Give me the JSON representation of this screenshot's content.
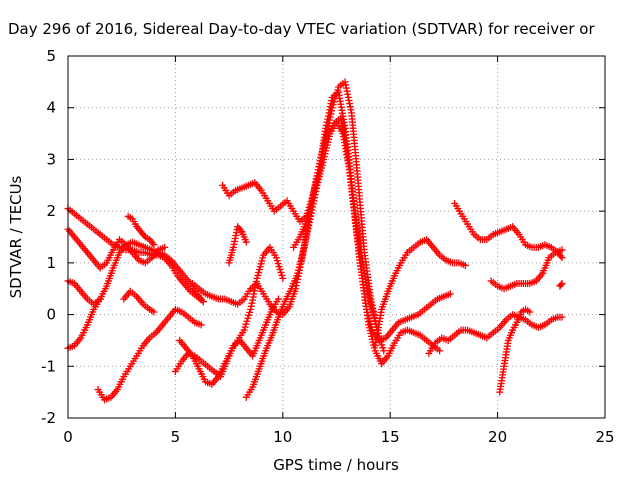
{
  "chart_data": {
    "type": "scatter",
    "title": "Day 296 of 2016, Sidereal Day-to-day VTEC variation (SDTVAR) for receiver or",
    "xlabel": "GPS time / hours",
    "ylabel": "SDTVAR / TECUs",
    "xlim": [
      0,
      25
    ],
    "ylim": [
      -2,
      5
    ],
    "xticks": [
      "0",
      "5",
      "10",
      "15",
      "20",
      "25"
    ],
    "yticks": [
      "-2",
      "-1",
      "0",
      "1",
      "2",
      "3",
      "4",
      "5"
    ],
    "grid": true,
    "marker": "+",
    "marker_color": "#ff0000",
    "series": [
      {
        "x": [
          0.0,
          0.3,
          0.6,
          0.9,
          1.2,
          1.5,
          1.8,
          2.1,
          2.4,
          2.7,
          3.0,
          3.3,
          3.6,
          3.9,
          4.2,
          4.5,
          4.8,
          5.1,
          5.4,
          5.7,
          6.0,
          6.3
        ],
        "y": [
          2.05,
          1.95,
          1.85,
          1.75,
          1.65,
          1.55,
          1.45,
          1.35,
          1.3,
          1.25,
          1.25,
          1.2,
          1.2,
          1.15,
          1.15,
          1.1,
          0.95,
          0.75,
          0.6,
          0.45,
          0.35,
          0.25
        ]
      },
      {
        "x": [
          0.0,
          0.3,
          0.6,
          0.9,
          1.2,
          1.5,
          1.8,
          2.1,
          2.4,
          2.7,
          3.0,
          3.3,
          3.6,
          3.9,
          4.2,
          4.5
        ],
        "y": [
          1.65,
          1.5,
          1.35,
          1.2,
          1.05,
          0.9,
          1.0,
          1.25,
          1.45,
          1.35,
          1.2,
          1.05,
          1.0,
          1.1,
          1.25,
          1.3
        ]
      },
      {
        "x": [
          0.0,
          0.3,
          0.6,
          0.9,
          1.2,
          1.5,
          1.8,
          2.1,
          2.4,
          2.7,
          3.0,
          3.3,
          3.6,
          3.9,
          4.2,
          4.5,
          4.8,
          5.1,
          5.4,
          5.7,
          6.0,
          6.3
        ],
        "y": [
          -0.65,
          -0.6,
          -0.45,
          -0.2,
          0.1,
          0.3,
          0.55,
          0.9,
          1.2,
          1.35,
          1.4,
          1.35,
          1.3,
          1.25,
          1.2,
          1.15,
          1.05,
          0.9,
          0.75,
          0.6,
          0.4,
          0.25
        ]
      },
      {
        "x": [
          0.0,
          0.3,
          0.6,
          0.9,
          1.2,
          1.5
        ],
        "y": [
          0.65,
          0.6,
          0.45,
          0.3,
          0.2,
          0.3
        ]
      },
      {
        "x": [
          1.4,
          1.7,
          2.0,
          2.3,
          2.6,
          2.9,
          3.2,
          3.5,
          3.8,
          4.1,
          4.4,
          4.7,
          5.0,
          5.3,
          5.6,
          5.9,
          6.2
        ],
        "y": [
          -1.45,
          -1.65,
          -1.6,
          -1.45,
          -1.2,
          -1.0,
          -0.8,
          -0.6,
          -0.45,
          -0.35,
          -0.2,
          -0.05,
          0.1,
          0.05,
          -0.05,
          -0.15,
          -0.2
        ]
      },
      {
        "x": [
          2.6,
          2.9,
          3.2,
          3.5,
          3.8,
          4.0
        ],
        "y": [
          0.3,
          0.45,
          0.35,
          0.2,
          0.1,
          0.05
        ]
      },
      {
        "x": [
          2.8,
          3.0,
          3.2,
          3.4,
          3.6,
          3.8,
          4.0
        ],
        "y": [
          1.9,
          1.85,
          1.7,
          1.6,
          1.5,
          1.45,
          1.35
        ]
      },
      {
        "x": [
          5.8,
          6.1,
          6.4,
          6.7,
          7.0,
          7.3,
          7.6,
          7.9,
          8.2,
          8.5,
          8.8,
          9.1,
          9.4,
          9.7,
          10.0,
          10.3,
          10.6,
          10.9,
          11.2,
          11.5,
          11.8,
          12.1,
          12.4,
          12.7,
          13.0,
          13.3,
          13.6,
          13.9,
          14.2,
          14.5,
          14.8,
          15.1,
          15.4,
          15.7,
          16.0,
          16.3,
          16.6,
          16.9,
          17.2,
          17.5,
          17.8
        ],
        "y": [
          0.6,
          0.5,
          0.4,
          0.35,
          0.3,
          0.3,
          0.25,
          0.2,
          0.3,
          0.5,
          0.6,
          0.4,
          0.2,
          0.05,
          0.0,
          0.15,
          0.5,
          1.1,
          1.8,
          2.5,
          3.1,
          3.5,
          3.7,
          3.8,
          3.3,
          2.2,
          1.0,
          0.1,
          -0.35,
          -0.5,
          -0.45,
          -0.3,
          -0.15,
          -0.1,
          -0.05,
          0.0,
          0.1,
          0.2,
          0.3,
          0.35,
          0.4
        ]
      },
      {
        "x": [
          8.3,
          8.6,
          8.9,
          9.2,
          9.5,
          9.8,
          10.1,
          10.4,
          10.7,
          11.0,
          11.3,
          11.6,
          11.9,
          12.2,
          12.5,
          12.8,
          13.1,
          13.4,
          13.7,
          14.0,
          14.3,
          14.6,
          14.9,
          15.2,
          15.5,
          15.8,
          16.1,
          16.4,
          16.7,
          17.0,
          17.3
        ],
        "y": [
          -1.6,
          -1.4,
          -1.05,
          -0.7,
          -0.4,
          -0.05,
          0.25,
          0.5,
          0.8,
          1.3,
          1.9,
          2.5,
          3.0,
          3.5,
          3.7,
          3.5,
          2.8,
          1.7,
          0.7,
          -0.2,
          -0.7,
          -0.95,
          -0.8,
          -0.55,
          -0.35,
          -0.3,
          -0.35,
          -0.4,
          -0.5,
          -0.6,
          -0.7
        ]
      },
      {
        "x": [
          7.2,
          7.5,
          7.8,
          8.1,
          8.4,
          8.7,
          9.0,
          9.3,
          9.6,
          9.9,
          10.2,
          10.5,
          10.8,
          11.1,
          11.4,
          11.7,
          12.0,
          12.3,
          12.6,
          12.9,
          13.2,
          13.5,
          13.8,
          14.1,
          14.4,
          14.7
        ],
        "y": [
          2.5,
          2.3,
          2.4,
          2.45,
          2.5,
          2.55,
          2.4,
          2.2,
          2.0,
          2.1,
          2.2,
          2.0,
          1.8,
          1.9,
          2.3,
          2.8,
          3.4,
          4.0,
          4.4,
          4.5,
          3.9,
          2.6,
          1.2,
          0.3,
          -0.3,
          -0.7
        ]
      },
      {
        "x": [
          5.0,
          5.3,
          5.6,
          5.9,
          6.2,
          6.5,
          6.8,
          7.1,
          7.4,
          7.7,
          8.0,
          8.3,
          8.6,
          8.9,
          9.2,
          9.5,
          9.8
        ],
        "y": [
          -1.1,
          -0.9,
          -0.75,
          -0.8,
          -0.9,
          -1.0,
          -1.1,
          -1.2,
          -0.9,
          -0.6,
          -0.5,
          -0.65,
          -0.8,
          -0.5,
          -0.2,
          0.1,
          0.3
        ]
      },
      {
        "x": [
          5.2,
          5.5,
          5.8,
          6.1,
          6.4,
          6.7,
          7.0,
          7.3,
          7.6,
          7.9,
          8.2,
          8.5,
          8.8,
          9.1,
          9.4,
          9.7,
          10.0
        ],
        "y": [
          -0.5,
          -0.65,
          -0.8,
          -1.05,
          -1.3,
          -1.35,
          -1.2,
          -0.95,
          -0.7,
          -0.5,
          -0.3,
          0.1,
          0.7,
          1.15,
          1.3,
          1.1,
          0.7
        ]
      },
      {
        "x": [
          7.5,
          7.7,
          7.9,
          8.1,
          8.3
        ],
        "y": [
          1.0,
          1.3,
          1.7,
          1.6,
          1.4
        ]
      },
      {
        "x": [
          10.5,
          10.8,
          11.1,
          11.4,
          11.7,
          12.0,
          12.3,
          12.6,
          12.9,
          13.2,
          13.5,
          13.8,
          14.1,
          14.4
        ],
        "y": [
          1.3,
          1.5,
          1.8,
          2.2,
          2.8,
          3.6,
          4.2,
          4.3,
          3.6,
          2.5,
          1.6,
          0.8,
          0.2,
          -0.3
        ]
      },
      {
        "x": [
          14.3,
          14.6,
          14.9,
          15.2,
          15.5,
          15.8,
          16.1,
          16.4,
          16.7,
          17.0,
          17.3,
          17.6,
          17.9,
          18.2,
          18.5
        ],
        "y": [
          -0.6,
          0.1,
          0.45,
          0.75,
          1.0,
          1.2,
          1.3,
          1.4,
          1.45,
          1.3,
          1.15,
          1.05,
          1.0,
          1.0,
          0.95
        ]
      },
      {
        "x": [
          16.8,
          17.1,
          17.4,
          17.7,
          18.0,
          18.3,
          18.6,
          18.9,
          19.2,
          19.5,
          19.8,
          20.1,
          20.4,
          20.7,
          21.0,
          21.3,
          21.6,
          21.9,
          22.2,
          22.5,
          22.8,
          23.0
        ],
        "y": [
          -0.75,
          -0.55,
          -0.45,
          -0.5,
          -0.4,
          -0.3,
          -0.3,
          -0.35,
          -0.4,
          -0.45,
          -0.35,
          -0.25,
          -0.1,
          0.0,
          -0.05,
          -0.1,
          -0.2,
          -0.25,
          -0.2,
          -0.1,
          -0.05,
          -0.05
        ]
      },
      {
        "x": [
          18.0,
          18.3,
          18.6,
          18.9,
          19.2,
          19.5,
          19.8,
          20.1,
          20.4,
          20.7,
          21.0,
          21.3,
          21.6,
          21.9,
          22.2,
          22.5,
          22.8,
          23.0
        ],
        "y": [
          2.15,
          1.95,
          1.75,
          1.55,
          1.45,
          1.45,
          1.55,
          1.6,
          1.65,
          1.7,
          1.55,
          1.35,
          1.3,
          1.3,
          1.35,
          1.3,
          1.2,
          1.1
        ]
      },
      {
        "x": [
          19.7,
          20.0,
          20.3,
          20.6,
          20.9,
          21.2,
          21.5,
          21.8,
          22.1,
          22.4,
          22.7,
          23.0
        ],
        "y": [
          0.65,
          0.55,
          0.5,
          0.55,
          0.6,
          0.6,
          0.6,
          0.65,
          0.8,
          1.1,
          1.2,
          1.25
        ]
      },
      {
        "x": [
          20.1,
          20.3,
          20.5,
          20.7,
          20.9,
          21.1,
          21.3,
          21.5
        ],
        "y": [
          -1.5,
          -1.0,
          -0.5,
          -0.3,
          -0.15,
          0.05,
          0.1,
          0.05
        ]
      },
      {
        "x": [
          22.9,
          23.0
        ],
        "y": [
          0.55,
          0.6
        ]
      }
    ]
  }
}
